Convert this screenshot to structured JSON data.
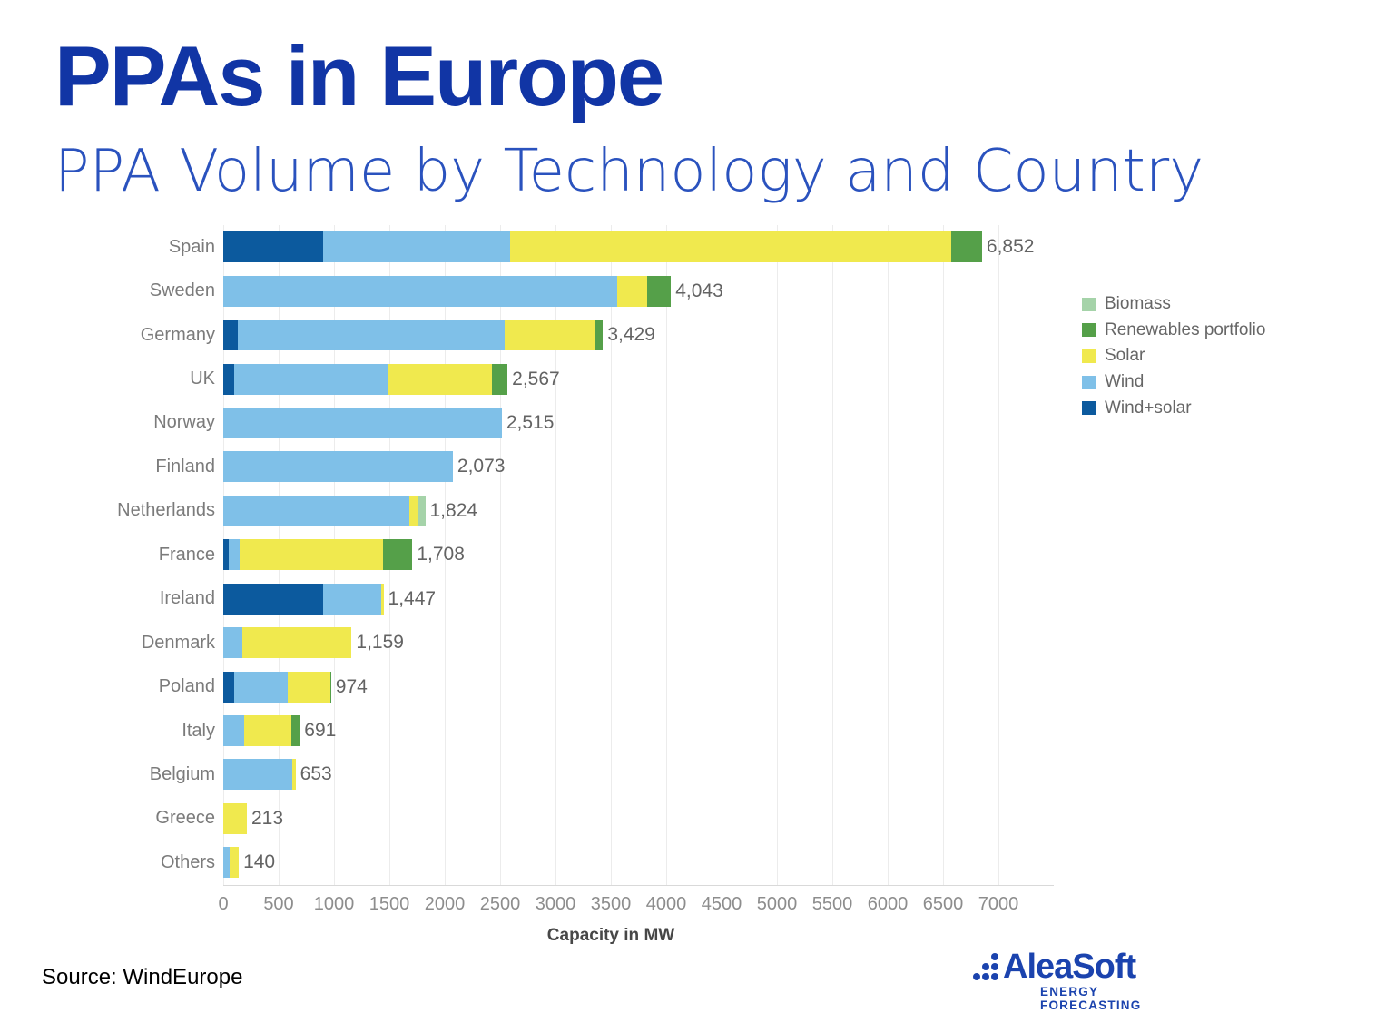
{
  "header": {
    "title": "PPAs in Europe",
    "subtitle": "PPA Volume by Technology and Country"
  },
  "colors": {
    "title_blue": "#1135a5",
    "subtitle_blue": "#2a52be",
    "logo_blue": "#1b43ae"
  },
  "chart_data": {
    "type": "bar",
    "orientation": "horizontal-stacked",
    "xlabel": "Capacity in MW",
    "xlim": [
      0,
      7500
    ],
    "x_ticks": [
      0,
      500,
      1000,
      1500,
      2000,
      2500,
      3000,
      3500,
      4000,
      4500,
      5000,
      5500,
      6000,
      6500,
      7000
    ],
    "grid": true,
    "categories": [
      "Spain",
      "Sweden",
      "Germany",
      "UK",
      "Norway",
      "Finland",
      "Netherlands",
      "France",
      "Ireland",
      "Denmark",
      "Poland",
      "Italy",
      "Belgium",
      "Greece",
      "Others"
    ],
    "series": [
      {
        "name": "Wind+solar",
        "color": "#0c5a9e",
        "values": [
          900,
          0,
          135,
          100,
          0,
          0,
          0,
          50,
          900,
          0,
          100,
          0,
          0,
          0,
          0
        ]
      },
      {
        "name": "Wind",
        "color": "#7fc0e8",
        "values": [
          1690,
          3560,
          2410,
          1390,
          2515,
          2073,
          1680,
          100,
          530,
          175,
          480,
          190,
          620,
          0,
          55
        ]
      },
      {
        "name": "Solar",
        "color": "#f0e94e",
        "values": [
          3980,
          270,
          810,
          940,
          0,
          0,
          75,
          1290,
          17,
          984,
          385,
          425,
          33,
          213,
          85
        ]
      },
      {
        "name": "Renewables portfolio",
        "color": "#55a049",
        "values": [
          282,
          213,
          74,
          137,
          0,
          0,
          0,
          268,
          0,
          0,
          9,
          76,
          0,
          0,
          0
        ]
      },
      {
        "name": "Biomass",
        "color": "#a5d3a9",
        "values": [
          0,
          0,
          0,
          0,
          0,
          0,
          69,
          0,
          0,
          0,
          0,
          0,
          0,
          0,
          0
        ]
      }
    ],
    "totals": [
      6852,
      4043,
      3429,
      2567,
      2515,
      2073,
      1824,
      1708,
      1447,
      1159,
      974,
      691,
      653,
      213,
      140
    ],
    "total_labels": [
      "6,852",
      "4,043",
      "3,429",
      "2,567",
      "2,515",
      "2,073",
      "1,824",
      "1,708",
      "1,447",
      "1,159",
      "974",
      "691",
      "653",
      "213",
      "140"
    ],
    "legend": {
      "position": "right",
      "order": [
        "Biomass",
        "Renewables portfolio",
        "Solar",
        "Wind",
        "Wind+solar"
      ]
    }
  },
  "source": {
    "label": "Source: WindEurope"
  },
  "logo": {
    "name": "AleaSoft",
    "tagline": "ENERGY FORECASTING"
  }
}
